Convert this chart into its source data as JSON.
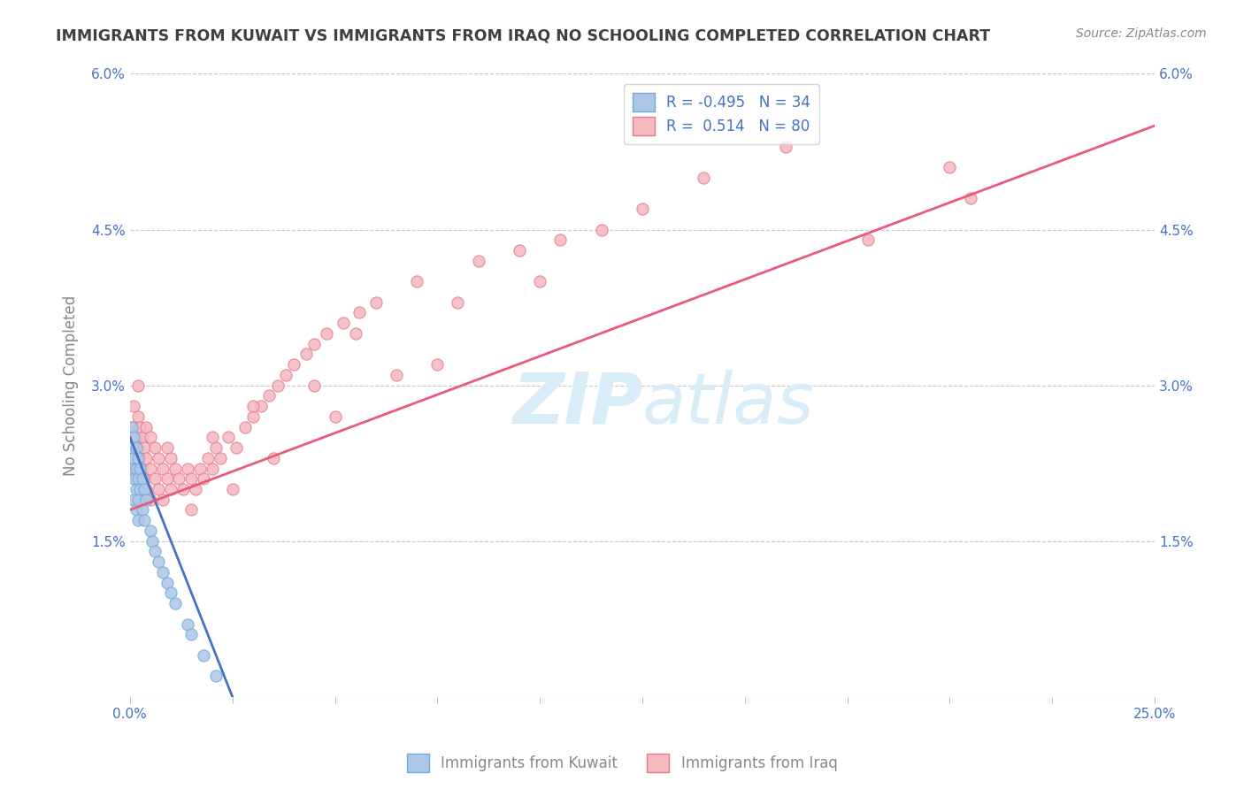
{
  "title": "IMMIGRANTS FROM KUWAIT VS IMMIGRANTS FROM IRAQ NO SCHOOLING COMPLETED CORRELATION CHART",
  "source": "Source: ZipAtlas.com",
  "ylabel": "No Schooling Completed",
  "xlim": [
    0.0,
    25.0
  ],
  "ylim": [
    0.0,
    6.0
  ],
  "xticks": [
    0.0,
    2.5,
    5.0,
    7.5,
    10.0,
    12.5,
    15.0,
    17.5,
    20.0,
    22.5,
    25.0
  ],
  "yticks": [
    0.0,
    1.5,
    3.0,
    4.5,
    6.0
  ],
  "ytick_labels": [
    "",
    "1.5%",
    "3.0%",
    "4.5%",
    "6.0%"
  ],
  "xtick_labels": [
    "0.0%",
    "",
    "",
    "",
    "",
    "",
    "",
    "",
    "",
    "",
    "25.0%"
  ],
  "kuwait_color": "#aec6e8",
  "iraq_color": "#f4b8c1",
  "kuwait_edge_color": "#6baed6",
  "iraq_edge_color": "#e87a8e",
  "blue_line_color": "#4472c4",
  "pink_line_color": "#e85c7a",
  "R_kuwait": -0.495,
  "N_kuwait": 34,
  "R_iraq": 0.514,
  "N_iraq": 80,
  "background_color": "#ffffff",
  "grid_color": "#c8c8c8",
  "title_color": "#404040",
  "source_color": "#888888",
  "axis_label_color": "#888888",
  "tick_label_color": "#4472c4",
  "watermark_color": "#d8edf8",
  "kuwait_line_x": [
    0.0,
    2.5
  ],
  "kuwait_line_y": [
    2.5,
    0.0
  ],
  "iraq_line_x": [
    0.0,
    25.0
  ],
  "iraq_line_y": [
    1.8,
    5.5
  ],
  "kuwait_points_x": [
    0.05,
    0.05,
    0.05,
    0.1,
    0.1,
    0.1,
    0.1,
    0.15,
    0.15,
    0.15,
    0.15,
    0.2,
    0.2,
    0.2,
    0.2,
    0.25,
    0.25,
    0.3,
    0.3,
    0.35,
    0.35,
    0.4,
    0.5,
    0.55,
    0.6,
    0.7,
    0.8,
    0.9,
    1.0,
    1.1,
    1.4,
    1.5,
    1.8,
    2.1
  ],
  "kuwait_points_y": [
    2.6,
    2.4,
    2.2,
    2.5,
    2.3,
    2.1,
    1.9,
    2.4,
    2.2,
    2.0,
    1.8,
    2.3,
    2.1,
    1.9,
    1.7,
    2.2,
    2.0,
    2.1,
    1.8,
    2.0,
    1.7,
    1.9,
    1.6,
    1.5,
    1.4,
    1.3,
    1.2,
    1.1,
    1.0,
    0.9,
    0.7,
    0.6,
    0.4,
    0.2
  ],
  "iraq_points_x": [
    0.05,
    0.1,
    0.1,
    0.15,
    0.15,
    0.2,
    0.2,
    0.2,
    0.25,
    0.25,
    0.3,
    0.3,
    0.35,
    0.35,
    0.4,
    0.4,
    0.4,
    0.5,
    0.5,
    0.5,
    0.6,
    0.6,
    0.7,
    0.7,
    0.8,
    0.8,
    0.9,
    0.9,
    1.0,
    1.0,
    1.1,
    1.2,
    1.3,
    1.4,
    1.5,
    1.6,
    1.7,
    1.8,
    1.9,
    2.0,
    2.1,
    2.2,
    2.4,
    2.6,
    2.8,
    3.0,
    3.2,
    3.4,
    3.6,
    3.8,
    4.0,
    4.3,
    4.5,
    4.8,
    5.2,
    5.6,
    6.0,
    7.0,
    8.5,
    9.5,
    10.5,
    11.5,
    12.5,
    14.0,
    16.0,
    18.0,
    20.0,
    20.5,
    1.5,
    2.5,
    3.5,
    5.0,
    6.5,
    8.0,
    2.0,
    3.0,
    4.5,
    5.5,
    7.5,
    10.0
  ],
  "iraq_points_y": [
    2.6,
    2.2,
    2.8,
    2.5,
    2.1,
    2.4,
    2.7,
    3.0,
    2.3,
    2.6,
    2.2,
    2.5,
    2.1,
    2.4,
    2.0,
    2.3,
    2.6,
    1.9,
    2.2,
    2.5,
    2.1,
    2.4,
    2.0,
    2.3,
    1.9,
    2.2,
    2.1,
    2.4,
    2.0,
    2.3,
    2.2,
    2.1,
    2.0,
    2.2,
    2.1,
    2.0,
    2.2,
    2.1,
    2.3,
    2.2,
    2.4,
    2.3,
    2.5,
    2.4,
    2.6,
    2.7,
    2.8,
    2.9,
    3.0,
    3.1,
    3.2,
    3.3,
    3.4,
    3.5,
    3.6,
    3.7,
    3.8,
    4.0,
    4.2,
    4.3,
    4.4,
    4.5,
    4.7,
    5.0,
    5.3,
    4.4,
    5.1,
    4.8,
    1.8,
    2.0,
    2.3,
    2.7,
    3.1,
    3.8,
    2.5,
    2.8,
    3.0,
    3.5,
    3.2,
    4.0
  ]
}
